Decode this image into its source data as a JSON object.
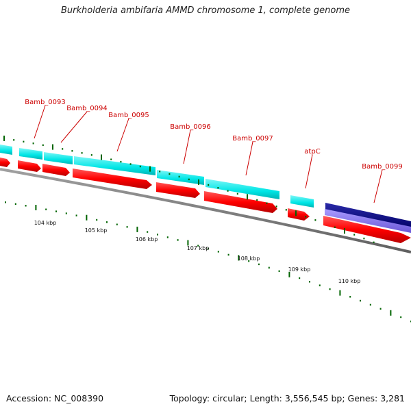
{
  "title": "Burkholderia ambifaria AMMD chromosome 1, complete genome",
  "footer": {
    "accession": "Accession: NC_008390",
    "summary": "Topology: circular; Length: 3,556,545 bp; Genes: 3,281"
  },
  "scale": {
    "labels": [
      "104 kbp",
      "105 kbp",
      "106 kbp",
      "107 kbp",
      "108 kbp",
      "109 kbp",
      "110 kbp"
    ]
  },
  "gene_labels": [
    "Bamb_0093",
    "Bamb_0094",
    "Bamb_0095",
    "Bamb_0096",
    "Bamb_0097",
    "atpC",
    "Bamb_0099"
  ],
  "colors": {
    "gene_cds": "#ff0000",
    "gene_row": "#00e6e6",
    "highlight_row": "#000080",
    "highlight_cds": "#7b68ee",
    "label_text": "#cc0000",
    "tick": "#006400",
    "backbone": "#7f7f7f"
  }
}
